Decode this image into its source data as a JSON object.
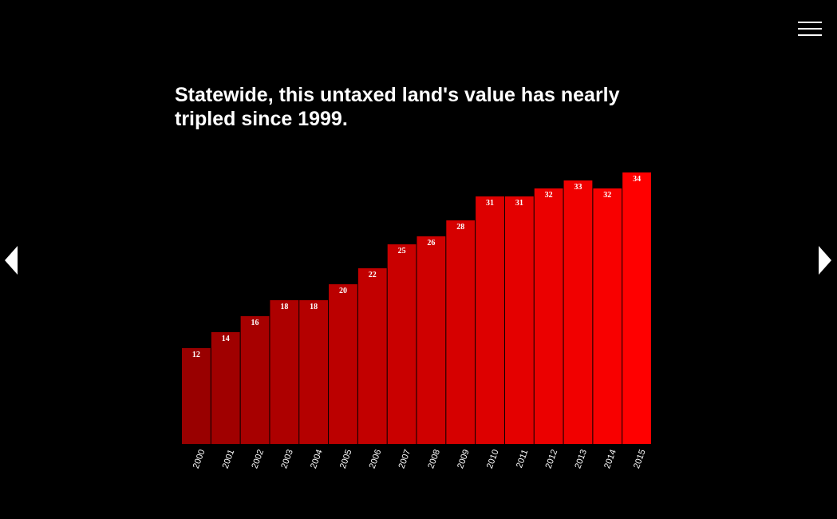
{
  "nav": {
    "menu_icon": "hamburger-menu-icon",
    "prev_icon": "triangle-left-icon",
    "next_icon": "triangle-right-icon"
  },
  "chart_data": {
    "type": "bar",
    "title": "Statewide, this untaxed land's value has nearly tripled since 1999.",
    "xlabel": "",
    "ylabel": "",
    "categories": [
      "2000",
      "2001",
      "2002",
      "2003",
      "2004",
      "2005",
      "2006",
      "2007",
      "2008",
      "2009",
      "2010",
      "2011",
      "2012",
      "2013",
      "2014",
      "2015"
    ],
    "values": [
      12,
      14,
      16,
      18,
      18,
      20,
      22,
      25,
      26,
      28,
      31,
      31,
      32,
      33,
      32,
      34
    ],
    "ylim": [
      0,
      34
    ],
    "grid": false,
    "legend": "none",
    "colors": {
      "bar_start": "#990000",
      "bar_end": "#ff0000",
      "label": "#ffffff",
      "background": "#000000"
    }
  }
}
